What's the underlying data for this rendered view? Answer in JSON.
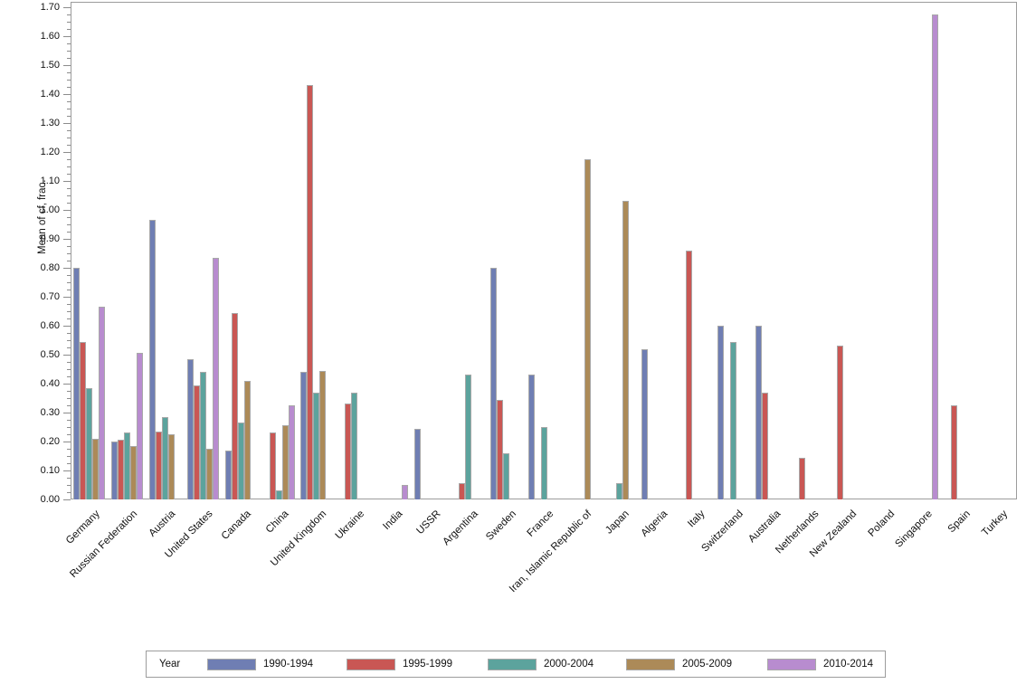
{
  "chart_data": {
    "type": "bar",
    "title": "",
    "xlabel": "",
    "ylabel": "Mean of cf, frac.",
    "ylim": [
      0,
      1.7
    ],
    "ytick_step": 0.1,
    "ytick_minor_step": 0.025,
    "grid": false,
    "legend_title": "Year",
    "legend_position": "bottom",
    "categories": [
      "Germany",
      "Russian Federation",
      "Austria",
      "United States",
      "Canada",
      "China",
      "United Kingdom",
      "Ukraine",
      "India",
      "USSR",
      "Argentina",
      "Sweden",
      "France",
      "Iran, Islamic Republic of",
      "Japan",
      "Algeria",
      "Italy",
      "Switzerland",
      "Australia",
      "Netherlands",
      "New Zealand",
      "Poland",
      "Singapore",
      "Spain",
      "Turkey"
    ],
    "series": [
      {
        "name": "1990-1994",
        "color": "#6F7EB3",
        "values": [
          0.8,
          0.2,
          0.965,
          0.485,
          0.17,
          null,
          0.44,
          null,
          null,
          0.245,
          null,
          0.8,
          0.43,
          null,
          null,
          0.52,
          null,
          0.6,
          0.6,
          null,
          null,
          null,
          null,
          null,
          null
        ]
      },
      {
        "name": "1995-1999",
        "color": "#C95754",
        "values": [
          0.545,
          0.205,
          0.235,
          0.395,
          0.645,
          0.23,
          1.43,
          0.33,
          null,
          null,
          0.055,
          0.345,
          null,
          null,
          null,
          null,
          0.86,
          null,
          0.37,
          0.145,
          0.53,
          null,
          null,
          0.325,
          null
        ]
      },
      {
        "name": "2000-2004",
        "color": "#5CA39D",
        "values": [
          0.385,
          0.23,
          0.285,
          0.44,
          0.265,
          0.03,
          0.37,
          0.37,
          null,
          null,
          0.43,
          0.16,
          0.25,
          null,
          0.055,
          null,
          null,
          0.545,
          null,
          null,
          null,
          null,
          null,
          null,
          null
        ]
      },
      {
        "name": "2005-2009",
        "color": "#AC8A58",
        "values": [
          0.21,
          0.185,
          0.225,
          0.175,
          0.41,
          0.255,
          0.445,
          null,
          null,
          null,
          null,
          null,
          null,
          1.175,
          1.03,
          null,
          null,
          null,
          null,
          null,
          null,
          null,
          null,
          null,
          null
        ]
      },
      {
        "name": "2010-2014",
        "color": "#B88CCF",
        "values": [
          0.665,
          0.505,
          null,
          0.835,
          null,
          0.325,
          null,
          null,
          0.05,
          null,
          null,
          null,
          null,
          null,
          null,
          null,
          null,
          null,
          null,
          null,
          null,
          null,
          1.675,
          null,
          null
        ]
      }
    ]
  },
  "colors": {
    "frame": "#9c9c9c",
    "tick": "#8c8c8c",
    "bar_outline": "#a8a8a8",
    "text": "#111111",
    "background": "#ffffff"
  }
}
